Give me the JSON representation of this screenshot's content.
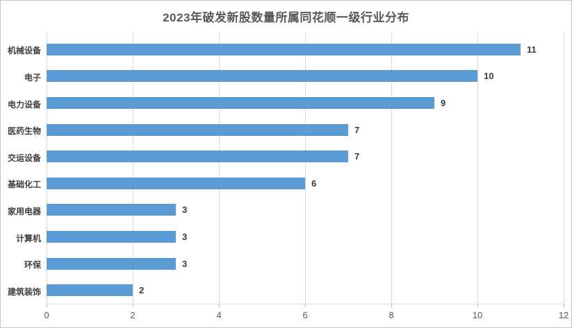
{
  "page": {
    "background": "#ffffff",
    "border_color": "#c6c6c6"
  },
  "chart_data": {
    "type": "bar",
    "orientation": "horizontal",
    "title": "2023年破发新股数量所属同花顺一级行业分布",
    "categories": [
      "机械设备",
      "电子",
      "电力设备",
      "医药生物",
      "交运设备",
      "基础化工",
      "家用电器",
      "计算机",
      "环保",
      "建筑装饰"
    ],
    "values": [
      11,
      10,
      9,
      7,
      7,
      6,
      3,
      3,
      3,
      2
    ],
    "data_labels": [
      "11",
      "10",
      "9",
      "7",
      "7",
      "6",
      "3",
      "3",
      "3",
      "2"
    ],
    "xlabel": "",
    "ylabel": "",
    "xlim": [
      0,
      12
    ],
    "xticks": [
      0,
      2,
      4,
      6,
      8,
      10,
      12
    ],
    "xtick_labels": [
      "0",
      "2",
      "4",
      "6",
      "8",
      "10",
      "12"
    ],
    "grid": true,
    "legend_position": "none",
    "bar_color": "#5B9BD5",
    "gridline_color": "#D9D9D9",
    "axis_color": "#BFBFBF",
    "title_color": "#595959",
    "label_color": "#404040",
    "value_label_color": "#3b3b3b",
    "tick_label_color": "#595959"
  }
}
